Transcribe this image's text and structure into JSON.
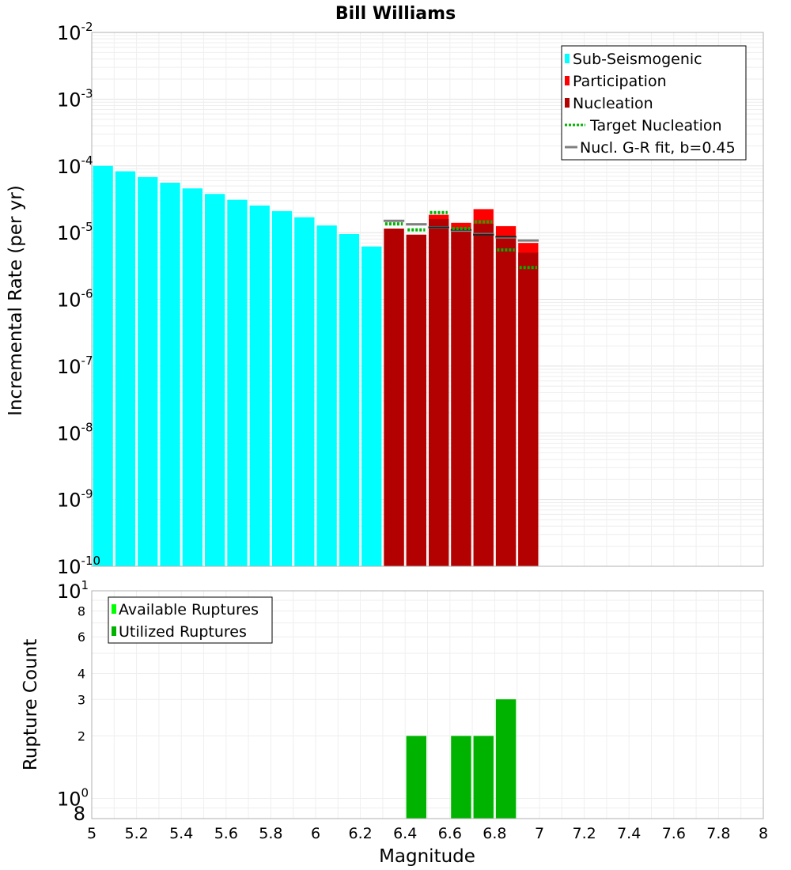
{
  "chart_data": [
    {
      "type": "bar",
      "title": "Bill Williams",
      "xlabel": "",
      "ylabel": "Incremental Rate (per yr)",
      "yscale": "log",
      "ylim": [
        1e-10,
        0.01
      ],
      "xlim": [
        5,
        8
      ],
      "y_tick_labels": [
        {
          "base": "10",
          "exp": "-2"
        },
        {
          "base": "10",
          "exp": "-3"
        },
        {
          "base": "10",
          "exp": "-4"
        },
        {
          "base": "10",
          "exp": "-5"
        },
        {
          "base": "10",
          "exp": "-6"
        },
        {
          "base": "10",
          "exp": "-7"
        },
        {
          "base": "10",
          "exp": "-8"
        },
        {
          "base": "10",
          "exp": "-9"
        },
        {
          "base": "10",
          "exp": "-10"
        }
      ],
      "legend_position": "top-right",
      "legend": [
        {
          "label": "Sub-Seismogenic",
          "style": "bar",
          "color": "#00ffff"
        },
        {
          "label": "Participation",
          "style": "bar",
          "color": "#ff0000"
        },
        {
          "label": "Nucleation",
          "style": "bar",
          "color": "#b30000"
        },
        {
          "label": "Target Nucleation",
          "style": "dotted",
          "color": "#00b300"
        },
        {
          "label": "Nucl. G-R fit, b=0.45",
          "style": "line",
          "color": "#808080"
        }
      ],
      "series": [
        {
          "name": "Sub-Seismogenic",
          "color": "#00ffff",
          "x": [
            5.05,
            5.15,
            5.25,
            5.35,
            5.45,
            5.55,
            5.65,
            5.75,
            5.85,
            5.95,
            6.05,
            6.15,
            6.25
          ],
          "values": [
            0.0001,
            8.3e-05,
            6.8e-05,
            5.6e-05,
            4.6e-05,
            3.8e-05,
            3.1e-05,
            2.55e-05,
            2.1e-05,
            1.7e-05,
            1.28e-05,
            9.5e-06,
            6.2e-06
          ]
        },
        {
          "name": "Participation",
          "color": "#ff0000",
          "x": [
            6.35,
            6.45,
            6.55,
            6.65,
            6.75,
            6.85,
            6.95
          ],
          "values": [
            1.15e-05,
            9.3e-06,
            1.85e-05,
            1.4e-05,
            2.25e-05,
            1.25e-05,
            7e-06
          ]
        },
        {
          "name": "Nucleation",
          "color": "#b30000",
          "x": [
            6.35,
            6.45,
            6.55,
            6.65,
            6.75,
            6.85,
            6.95
          ],
          "values": [
            1.15e-05,
            9.3e-06,
            1.6e-05,
            1.1e-05,
            1.35e-05,
            8.7e-06,
            5e-06
          ]
        },
        {
          "name": "Target Nucleation",
          "color": "#00b300",
          "x": [
            6.35,
            6.45,
            6.55,
            6.65,
            6.75,
            6.85,
            6.95
          ],
          "values": [
            1.35e-05,
            1.1e-05,
            2e-05,
            1.15e-05,
            1.45e-05,
            5.5e-06,
            3e-06
          ]
        },
        {
          "name": "Nucl. G-R fit, b=0.45",
          "color": "#808080",
          "x": [
            6.35,
            6.45,
            6.55,
            6.65,
            6.75,
            6.85,
            6.95
          ],
          "values": [
            1.5e-05,
            1.33e-05,
            1.2e-05,
            1.07e-05,
            9.5e-06,
            8.5e-06,
            7.6e-06
          ]
        },
        {
          "name": "Nucleation marker",
          "color": "#222222",
          "x": [
            6.55,
            6.65,
            6.75,
            6.85
          ],
          "values": [
            1.2e-05,
            1.1e-05,
            9.3e-06,
            8.7e-06
          ]
        }
      ]
    },
    {
      "type": "bar",
      "title": "",
      "xlabel": "Magnitude",
      "ylabel": "Rupture Count",
      "yscale": "log",
      "ylim": [
        0.8,
        10
      ],
      "xlim": [
        5,
        8
      ],
      "x_ticks": [
        "5",
        "5.2",
        "5.4",
        "5.6",
        "5.8",
        "6",
        "6.2",
        "6.4",
        "6.6",
        "6.8",
        "7",
        "7.2",
        "7.4",
        "7.6",
        "7.8",
        "8"
      ],
      "y_major_ticks": [
        {
          "value": 10,
          "base": "10",
          "exp": "1"
        },
        {
          "value": 1,
          "base": "10",
          "exp": "0"
        }
      ],
      "y_minor_ticks": [
        {
          "value": 8,
          "label": "8"
        },
        {
          "value": 6,
          "label": "6"
        },
        {
          "value": 4,
          "label": "4"
        },
        {
          "value": 3,
          "label": "3"
        },
        {
          "value": 2,
          "label": "2"
        },
        {
          "value": 0.8,
          "label": "8"
        }
      ],
      "legend_position": "top-left",
      "legend": [
        {
          "label": "Available Ruptures",
          "color": "#00ff00"
        },
        {
          "label": "Utilized Ruptures",
          "color": "#00b300"
        }
      ],
      "series": [
        {
          "name": "Available Ruptures",
          "color": "#00ff00",
          "x": [
            6.45,
            6.65,
            6.75,
            6.85
          ],
          "values": [
            2,
            2,
            2,
            3
          ]
        },
        {
          "name": "Utilized Ruptures",
          "color": "#00b300",
          "x": [
            6.45,
            6.65,
            6.75,
            6.85
          ],
          "values": [
            2,
            2,
            2,
            3
          ]
        }
      ]
    }
  ]
}
